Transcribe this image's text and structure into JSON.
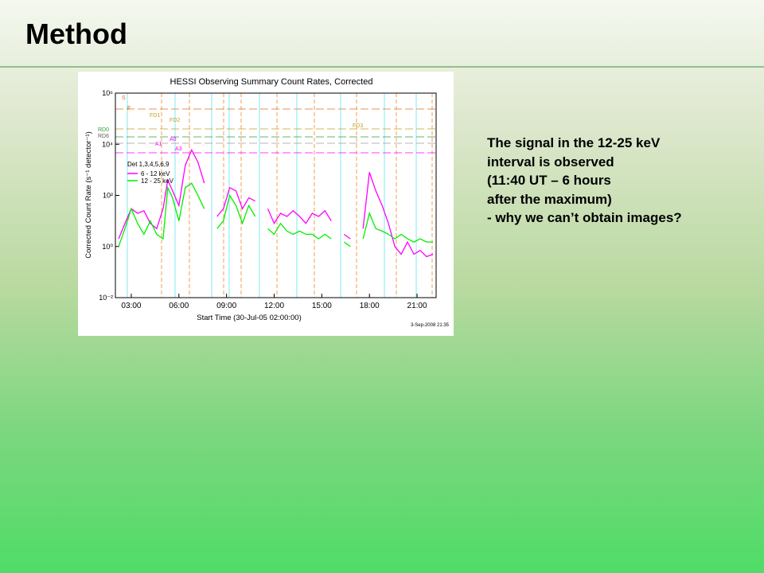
{
  "header": {
    "title": "Method"
  },
  "body": {
    "lines": [
      "The signal in the 12-25 keV",
      "interval is observed",
      "(11:40 UT – 6 hours",
      "after the maximum)",
      "- why we can’t obtain images?"
    ]
  },
  "chart_data": {
    "type": "line",
    "title": "HESSI Observing Summary Count Rates, Corrected",
    "x_label": "Start Time (30-Jul-05 02:00:00)",
    "y_label": "Corrected Count Rate (s⁻¹ detector⁻¹)",
    "footnote": "3-Sep-2008 21:35",
    "legend_title": "Det 1,3,4,5,6,9",
    "annotations": [
      "S",
      "F",
      "FD1",
      "FD2",
      "FD3",
      "RD0",
      "RD6",
      "A0",
      "A1",
      "A3"
    ],
    "log_y": true,
    "xlim": [
      2,
      22.2
    ],
    "ylim": [
      0.01,
      1000000
    ],
    "xticks": [
      {
        "value": 3,
        "label": "03:00"
      },
      {
        "value": 6,
        "label": "06:00"
      },
      {
        "value": 9,
        "label": "09:00"
      },
      {
        "value": 12,
        "label": "12:00"
      },
      {
        "value": 15,
        "label": "15:00"
      },
      {
        "value": 18,
        "label": "18:00"
      },
      {
        "value": 21,
        "label": "21:00"
      }
    ],
    "yticks": [
      {
        "value": 0.01,
        "label": "10⁻²"
      },
      {
        "value": 1,
        "label": "10⁰"
      },
      {
        "value": 100,
        "label": "10²"
      },
      {
        "value": 10000,
        "label": "10⁴"
      },
      {
        "value": 1000000,
        "label": "10⁶"
      }
    ],
    "x": [
      2.2,
      2.6,
      3.0,
      3.4,
      3.8,
      4.2,
      4.6,
      5.0,
      5.3,
      5.6,
      6.0,
      6.4,
      6.8,
      7.2,
      7.6,
      8.0,
      8.4,
      8.8,
      9.2,
      9.6,
      10.0,
      10.4,
      10.8,
      11.2,
      11.6,
      12.0,
      12.4,
      12.8,
      13.2,
      13.6,
      14.0,
      14.4,
      14.8,
      15.2,
      15.6,
      16.0,
      16.4,
      16.8,
      17.2,
      17.6,
      18.0,
      18.4,
      18.8,
      19.2,
      19.6,
      20.0,
      20.4,
      20.8,
      21.2,
      21.6,
      22.0
    ],
    "series": [
      {
        "name": "6 - 12 keV",
        "color": "#ff00ff",
        "values": [
          2,
          8,
          30,
          20,
          25,
          8,
          5,
          30,
          400,
          150,
          40,
          1500,
          6000,
          2000,
          300,
          null,
          15,
          30,
          200,
          150,
          30,
          80,
          60,
          null,
          30,
          8,
          20,
          15,
          25,
          15,
          8,
          20,
          15,
          25,
          10,
          null,
          3,
          2,
          null,
          5,
          800,
          150,
          40,
          8,
          1,
          0.5,
          1.5,
          0.5,
          0.7,
          0.4,
          0.5
        ]
      },
      {
        "name": "12 - 25 keV",
        "color": "#00ee00",
        "values": [
          1,
          5,
          30,
          8,
          3,
          10,
          3,
          2,
          200,
          80,
          10,
          200,
          300,
          100,
          30,
          null,
          5,
          10,
          100,
          40,
          8,
          40,
          15,
          null,
          5,
          3,
          8,
          4,
          3,
          4,
          3,
          3,
          2,
          3,
          2,
          null,
          1.5,
          1,
          null,
          2,
          20,
          5,
          4,
          3,
          2,
          3,
          2,
          1.5,
          2,
          1.5,
          1.5
        ]
      }
    ]
  }
}
